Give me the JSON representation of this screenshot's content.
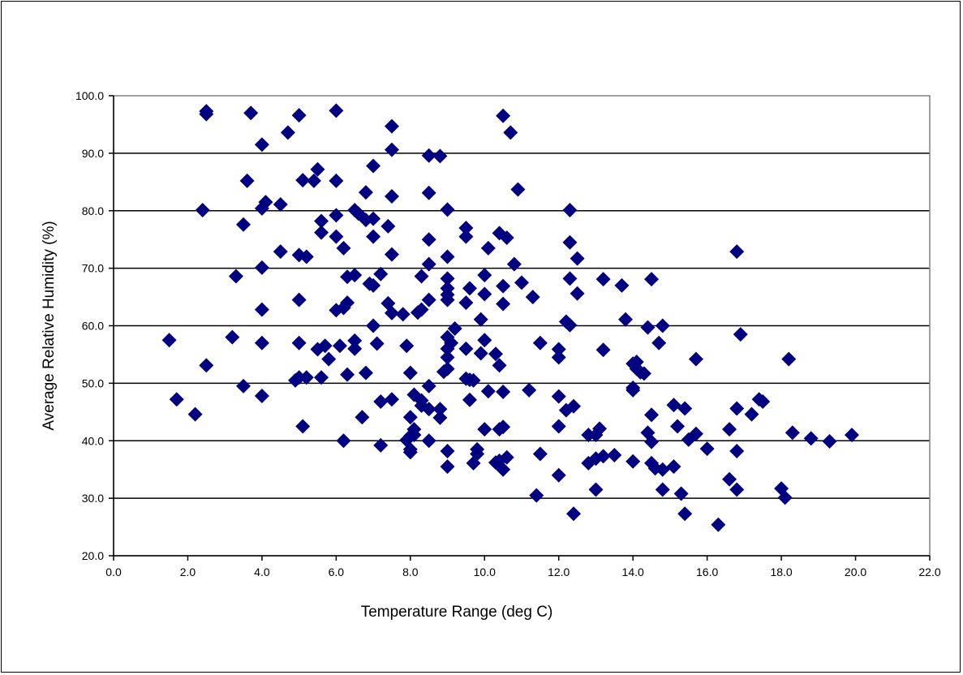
{
  "chart_data": {
    "type": "scatter",
    "title": "",
    "xlabel": "Temperature Range (deg C)",
    "ylabel": "Average Relative Humidity (%)",
    "xlim": [
      0,
      22
    ],
    "ylim": [
      20,
      100
    ],
    "xticks": [
      "0.0",
      "2.0",
      "4.0",
      "6.0",
      "8.0",
      "10.0",
      "12.0",
      "14.0",
      "16.0",
      "18.0",
      "20.0",
      "22.0"
    ],
    "yticks": [
      "20.0",
      "30.0",
      "40.0",
      "50.0",
      "60.0",
      "70.0",
      "80.0",
      "90.0",
      "100.0"
    ],
    "grid": "horizontal",
    "legend": "none",
    "marker": "diamond",
    "marker_color": "#000080",
    "series": [
      {
        "points": [
          [
            2.5,
            97.3
          ],
          [
            2.5,
            96.8
          ],
          [
            3.7,
            97.0
          ],
          [
            5.0,
            96.6
          ],
          [
            6.0,
            97.4
          ],
          [
            10.5,
            96.5
          ],
          [
            4.7,
            93.6
          ],
          [
            10.7,
            93.6
          ],
          [
            7.5,
            94.7
          ],
          [
            4.0,
            91.5
          ],
          [
            7.5,
            90.6
          ],
          [
            8.5,
            89.6
          ],
          [
            8.8,
            89.5
          ],
          [
            7.0,
            87.8
          ],
          [
            5.5,
            87.2
          ],
          [
            3.6,
            85.2
          ],
          [
            5.1,
            85.3
          ],
          [
            5.4,
            85.2
          ],
          [
            6.0,
            85.2
          ],
          [
            8.5,
            83.1
          ],
          [
            6.8,
            83.2
          ],
          [
            10.9,
            83.7
          ],
          [
            7.5,
            82.5
          ],
          [
            4.1,
            81.5
          ],
          [
            4.5,
            81.1
          ],
          [
            2.4,
            80.1
          ],
          [
            4.0,
            80.4
          ],
          [
            6.5,
            80.1
          ],
          [
            6.6,
            79.5
          ],
          [
            6.0,
            79.2
          ],
          [
            7.0,
            78.6
          ],
          [
            6.8,
            78.4
          ],
          [
            5.6,
            78.2
          ],
          [
            9.0,
            80.2
          ],
          [
            12.3,
            80.1
          ],
          [
            3.5,
            77.6
          ],
          [
            7.4,
            77.3
          ],
          [
            9.5,
            77.0
          ],
          [
            5.6,
            76.2
          ],
          [
            10.4,
            76.1
          ],
          [
            10.6,
            75.3
          ],
          [
            9.5,
            75.5
          ],
          [
            7.0,
            75.5
          ],
          [
            6.0,
            75.5
          ],
          [
            6.2,
            73.5
          ],
          [
            8.5,
            75.0
          ],
          [
            12.3,
            74.5
          ],
          [
            10.1,
            73.5
          ],
          [
            4.5,
            72.9
          ],
          [
            5.0,
            72.3
          ],
          [
            5.2,
            72.0
          ],
          [
            7.5,
            72.4
          ],
          [
            9.0,
            72.0
          ],
          [
            12.5,
            71.7
          ],
          [
            16.8,
            72.9
          ],
          [
            8.5,
            70.7
          ],
          [
            10.8,
            70.7
          ],
          [
            4.0,
            70.1
          ],
          [
            7.2,
            69.0
          ],
          [
            6.5,
            68.8
          ],
          [
            6.3,
            68.5
          ],
          [
            3.3,
            68.6
          ],
          [
            8.3,
            68.6
          ],
          [
            9.0,
            68.2
          ],
          [
            10.0,
            68.8
          ],
          [
            12.3,
            68.2
          ],
          [
            13.2,
            68.1
          ],
          [
            14.5,
            68.1
          ],
          [
            11.0,
            67.5
          ],
          [
            6.9,
            67.3
          ],
          [
            7.0,
            67.0
          ],
          [
            10.5,
            66.9
          ],
          [
            13.7,
            67.0
          ],
          [
            9.0,
            66.5
          ],
          [
            9.0,
            65.4
          ],
          [
            9.6,
            66.5
          ],
          [
            10.0,
            65.5
          ],
          [
            12.5,
            65.6
          ],
          [
            11.3,
            65.0
          ],
          [
            9.0,
            64.5
          ],
          [
            9.5,
            64.0
          ],
          [
            5.0,
            64.5
          ],
          [
            6.3,
            64.0
          ],
          [
            8.5,
            64.5
          ],
          [
            10.5,
            63.8
          ],
          [
            7.4,
            63.9
          ],
          [
            4.0,
            62.8
          ],
          [
            6.0,
            62.7
          ],
          [
            6.2,
            63.1
          ],
          [
            7.5,
            62.2
          ],
          [
            7.8,
            62.0
          ],
          [
            8.2,
            62.3
          ],
          [
            8.3,
            62.8
          ],
          [
            9.9,
            61.1
          ],
          [
            13.8,
            61.1
          ],
          [
            12.2,
            60.7
          ],
          [
            12.3,
            60.1
          ],
          [
            7.0,
            60.0
          ],
          [
            14.8,
            60.0
          ],
          [
            14.4,
            59.7
          ],
          [
            9.2,
            59.5
          ],
          [
            9.0,
            58.0
          ],
          [
            9.1,
            57.0
          ],
          [
            10.0,
            57.5
          ],
          [
            16.9,
            58.5
          ],
          [
            1.5,
            57.5
          ],
          [
            3.2,
            58.0
          ],
          [
            4.0,
            57.0
          ],
          [
            5.0,
            57.0
          ],
          [
            5.7,
            56.5
          ],
          [
            6.5,
            57.4
          ],
          [
            6.1,
            56.5
          ],
          [
            7.1,
            56.9
          ],
          [
            7.9,
            56.5
          ],
          [
            9.0,
            56.0
          ],
          [
            9.5,
            56.0
          ],
          [
            11.5,
            57.0
          ],
          [
            14.7,
            57.0
          ],
          [
            5.5,
            55.9
          ],
          [
            6.5,
            56.0
          ],
          [
            12.0,
            55.9
          ],
          [
            13.2,
            55.8
          ],
          [
            9.9,
            55.2
          ],
          [
            10.3,
            55.1
          ],
          [
            12.0,
            54.5
          ],
          [
            15.7,
            54.2
          ],
          [
            18.2,
            54.2
          ],
          [
            5.8,
            54.2
          ],
          [
            9.0,
            54.5
          ],
          [
            14.1,
            53.7
          ],
          [
            14.0,
            53.4
          ],
          [
            2.5,
            53.1
          ],
          [
            10.4,
            53.1
          ],
          [
            14.1,
            52.5
          ],
          [
            14.2,
            51.9
          ],
          [
            14.3,
            51.7
          ],
          [
            8.9,
            52.0
          ],
          [
            8.0,
            51.8
          ],
          [
            6.3,
            51.5
          ],
          [
            6.8,
            51.8
          ],
          [
            9.0,
            52.5
          ],
          [
            5.0,
            51.0
          ],
          [
            5.2,
            51.0
          ],
          [
            4.9,
            50.5
          ],
          [
            5.6,
            51.0
          ],
          [
            9.6,
            50.6
          ],
          [
            9.7,
            50.5
          ],
          [
            9.5,
            50.8
          ],
          [
            8.5,
            49.5
          ],
          [
            3.5,
            49.5
          ],
          [
            14.0,
            49.2
          ],
          [
            14.0,
            48.8
          ],
          [
            11.2,
            48.8
          ],
          [
            10.1,
            48.6
          ],
          [
            10.5,
            48.5
          ],
          [
            12.0,
            47.7
          ],
          [
            4.0,
            47.8
          ],
          [
            1.7,
            47.2
          ],
          [
            7.2,
            46.8
          ],
          [
            7.5,
            47.2
          ],
          [
            8.1,
            48.0
          ],
          [
            8.3,
            47.0
          ],
          [
            9.6,
            47.1
          ],
          [
            17.4,
            47.2
          ],
          [
            17.5,
            46.8
          ],
          [
            8.3,
            46.1
          ],
          [
            12.4,
            46.0
          ],
          [
            12.2,
            45.3
          ],
          [
            15.1,
            46.2
          ],
          [
            15.4,
            45.6
          ],
          [
            16.8,
            45.6
          ],
          [
            8.5,
            45.5
          ],
          [
            8.8,
            45.5
          ],
          [
            2.2,
            44.6
          ],
          [
            6.7,
            44.1
          ],
          [
            8.0,
            44.1
          ],
          [
            8.8,
            44.0
          ],
          [
            14.5,
            44.5
          ],
          [
            17.2,
            44.6
          ],
          [
            5.1,
            42.5
          ],
          [
            8.1,
            42.0
          ],
          [
            10.0,
            42.0
          ],
          [
            10.4,
            42.0
          ],
          [
            10.5,
            42.4
          ],
          [
            12.0,
            42.5
          ],
          [
            13.1,
            42.1
          ],
          [
            15.2,
            42.5
          ],
          [
            14.4,
            41.4
          ],
          [
            16.6,
            42.0
          ],
          [
            8.1,
            41.0
          ],
          [
            12.8,
            41.0
          ],
          [
            13.0,
            41.0
          ],
          [
            15.7,
            41.2
          ],
          [
            18.3,
            41.4
          ],
          [
            19.9,
            41.0
          ],
          [
            8.0,
            40.8
          ],
          [
            7.9,
            40.1
          ],
          [
            8.5,
            40.0
          ],
          [
            6.2,
            40.0
          ],
          [
            14.5,
            39.8
          ],
          [
            15.5,
            40.2
          ],
          [
            18.8,
            40.4
          ],
          [
            19.3,
            39.9
          ],
          [
            7.2,
            39.2
          ],
          [
            8.0,
            38.5
          ],
          [
            8.0,
            38.0
          ],
          [
            9.0,
            38.2
          ],
          [
            9.8,
            38.5
          ],
          [
            9.8,
            37.7
          ],
          [
            11.5,
            37.7
          ],
          [
            13.2,
            37.3
          ],
          [
            13.5,
            37.5
          ],
          [
            16.0,
            38.6
          ],
          [
            16.8,
            38.2
          ],
          [
            10.4,
            36.5
          ],
          [
            10.3,
            36.2
          ],
          [
            10.6,
            37.1
          ],
          [
            13.0,
            36.9
          ],
          [
            14.0,
            36.4
          ],
          [
            12.8,
            36.1
          ],
          [
            14.5,
            36.1
          ],
          [
            14.6,
            35.2
          ],
          [
            14.8,
            35.0
          ],
          [
            9.0,
            35.5
          ],
          [
            9.7,
            36.1
          ],
          [
            10.5,
            35.0
          ],
          [
            15.1,
            35.5
          ],
          [
            16.6,
            33.3
          ],
          [
            12.0,
            34.0
          ],
          [
            18.0,
            31.7
          ],
          [
            18.1,
            30.1
          ],
          [
            16.8,
            31.5
          ],
          [
            13.0,
            31.5
          ],
          [
            14.8,
            31.5
          ],
          [
            11.4,
            30.5
          ],
          [
            15.3,
            30.8
          ],
          [
            12.4,
            27.3
          ],
          [
            15.4,
            27.3
          ],
          [
            16.3,
            25.4
          ]
        ]
      }
    ]
  }
}
